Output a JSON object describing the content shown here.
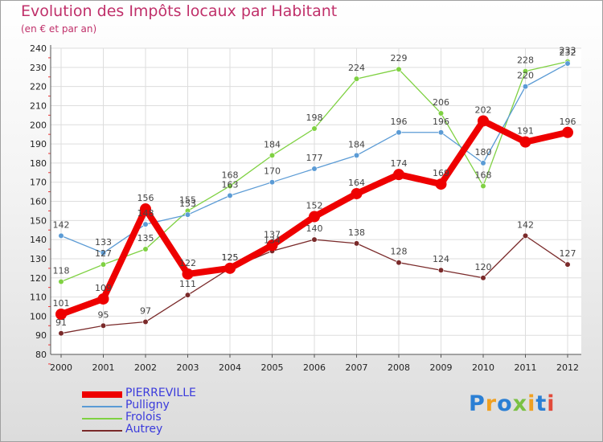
{
  "chart_data": {
    "type": "line",
    "title": "Evolution des Impôts locaux par Habitant",
    "subtitle": "(en € et par an)",
    "xlabel": "",
    "ylabel": "",
    "ylim": [
      80,
      240
    ],
    "yticks": [
      80,
      90,
      100,
      110,
      120,
      130,
      140,
      150,
      160,
      170,
      180,
      190,
      200,
      210,
      220,
      230,
      240
    ],
    "categories": [
      "2000",
      "2001",
      "2002",
      "2003",
      "2004",
      "2005",
      "2006",
      "2007",
      "2008",
      "2009",
      "2010",
      "2011",
      "2012"
    ],
    "grid": true,
    "legend_position": "bottom-left",
    "series": [
      {
        "name": "PIERREVILLE",
        "color": "#ee0000",
        "values": [
          101,
          109,
          156,
          122,
          125,
          137,
          152,
          164,
          174,
          169,
          202,
          191,
          196
        ]
      },
      {
        "name": "Pulligny",
        "color": "#5b9bd5",
        "values": [
          142,
          133,
          148,
          153,
          163,
          170,
          177,
          184,
          196,
          196,
          180,
          220,
          232
        ]
      },
      {
        "name": "Frolois",
        "color": "#7fd142",
        "values": [
          118,
          127,
          135,
          155,
          168,
          184,
          198,
          224,
          229,
          206,
          168,
          228,
          233
        ]
      },
      {
        "name": "Autrey",
        "color": "#7a2a2a",
        "values": [
          91,
          95,
          97,
          111,
          125,
          134,
          140,
          138,
          128,
          124,
          120,
          142,
          127
        ]
      }
    ]
  },
  "logo": {
    "letters": [
      "P",
      "r",
      "o",
      "x",
      "i",
      "t",
      "i"
    ],
    "colors": [
      "#2b7fd4",
      "#f0a020",
      "#2b7fd4",
      "#7ac143",
      "#f0a020",
      "#2b7fd4",
      "#e24a3a"
    ]
  }
}
